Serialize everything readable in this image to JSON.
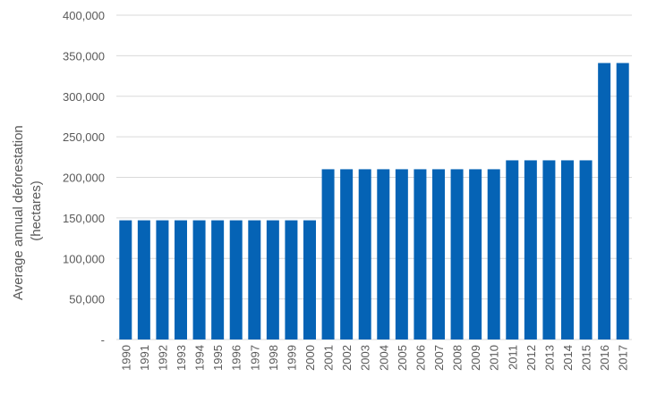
{
  "chart_data": {
    "type": "bar",
    "title": "",
    "xlabel": "",
    "ylabel_lines": [
      "Average annual deforestation",
      "(hectares)"
    ],
    "ylim": [
      0,
      400000
    ],
    "y_ticks": [
      "-",
      "50,000",
      "100,000",
      "150,000",
      "200,000",
      "250,000",
      "300,000",
      "350,000",
      "400,000"
    ],
    "grid": true,
    "bar_color": "#0563b5",
    "categories": [
      "1990",
      "1991",
      "1992",
      "1993",
      "1994",
      "1995",
      "1996",
      "1997",
      "1998",
      "1999",
      "2000",
      "2001",
      "2002",
      "2003",
      "2004",
      "2005",
      "2006",
      "2007",
      "2008",
      "2009",
      "2010",
      "2011",
      "2012",
      "2013",
      "2014",
      "2015",
      "2016",
      "2017"
    ],
    "values": [
      147000,
      147000,
      147000,
      147000,
      147000,
      147000,
      147000,
      147000,
      147000,
      147000,
      147000,
      210000,
      210000,
      210000,
      210000,
      210000,
      210000,
      210000,
      210000,
      210000,
      210000,
      221000,
      221000,
      221000,
      221000,
      221000,
      341000,
      341000
    ]
  }
}
